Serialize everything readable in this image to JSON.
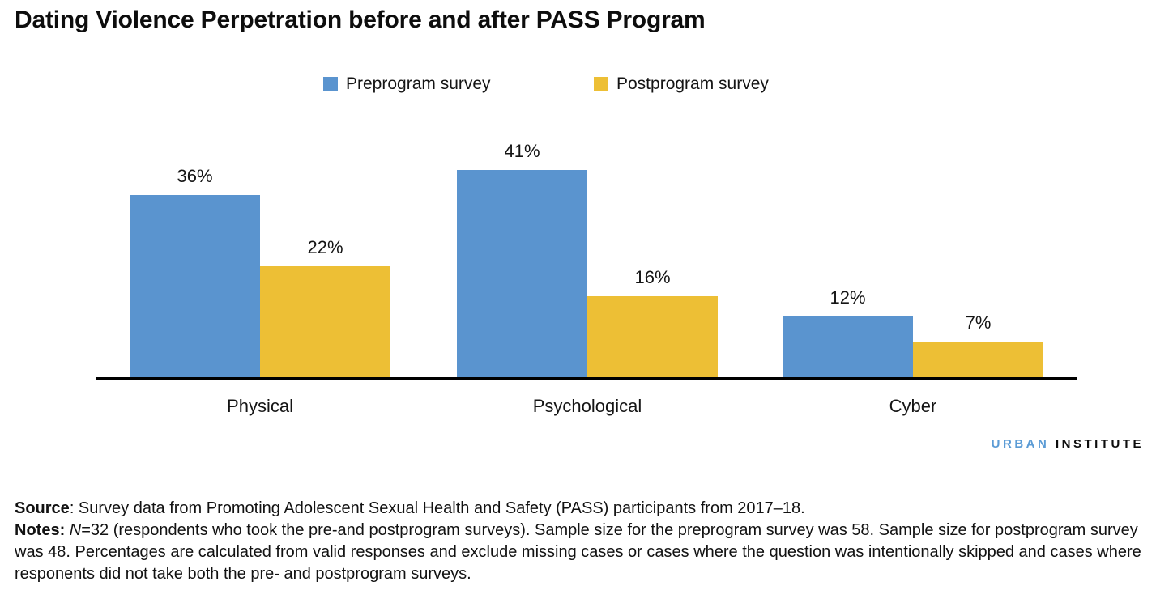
{
  "title": "Dating Violence Perpetration before and after PASS Program",
  "legend": {
    "items": [
      {
        "label": "Preprogram survey",
        "color": "#5a94cf"
      },
      {
        "label": "Postprogram survey",
        "color": "#edbf35"
      }
    ]
  },
  "chart_data": {
    "type": "bar",
    "title": "Dating Violence Perpetration before and after PASS Program",
    "categories": [
      "Physical",
      "Psychological",
      "Cyber"
    ],
    "series": [
      {
        "name": "Preprogram survey",
        "key": "preprogram",
        "color": "#5a94cf",
        "values": [
          36,
          41,
          12
        ]
      },
      {
        "name": "Postprogram survey",
        "key": "postprogram",
        "color": "#edbf35",
        "values": [
          22,
          16,
          7
        ]
      }
    ],
    "value_suffix": "%",
    "unit": "percent",
    "ylim": [
      0,
      45
    ],
    "grid": false,
    "legend_position": "top-center",
    "data_labels_shown": true,
    "xlabel": "",
    "ylabel": ""
  },
  "branding": {
    "urban": "URBAN",
    "institute": "INSTITUTE"
  },
  "footer": {
    "source_label": "Source",
    "source_text": ": Survey data from Promoting Adolescent Sexual Health and Safety (PASS) participants from 2017–18.",
    "notes_label": "Notes:",
    "notes_n": "N",
    "notes_text": "=32 (respondents who took the pre-and postprogram surveys). Sample size for the preprogram survey was 58. Sample size for postprogram survey was 48. Percentages are calculated from valid responses and exclude missing cases or cases where the question was intentionally skipped and cases where responents did not take both the pre- and postprogram surveys."
  }
}
